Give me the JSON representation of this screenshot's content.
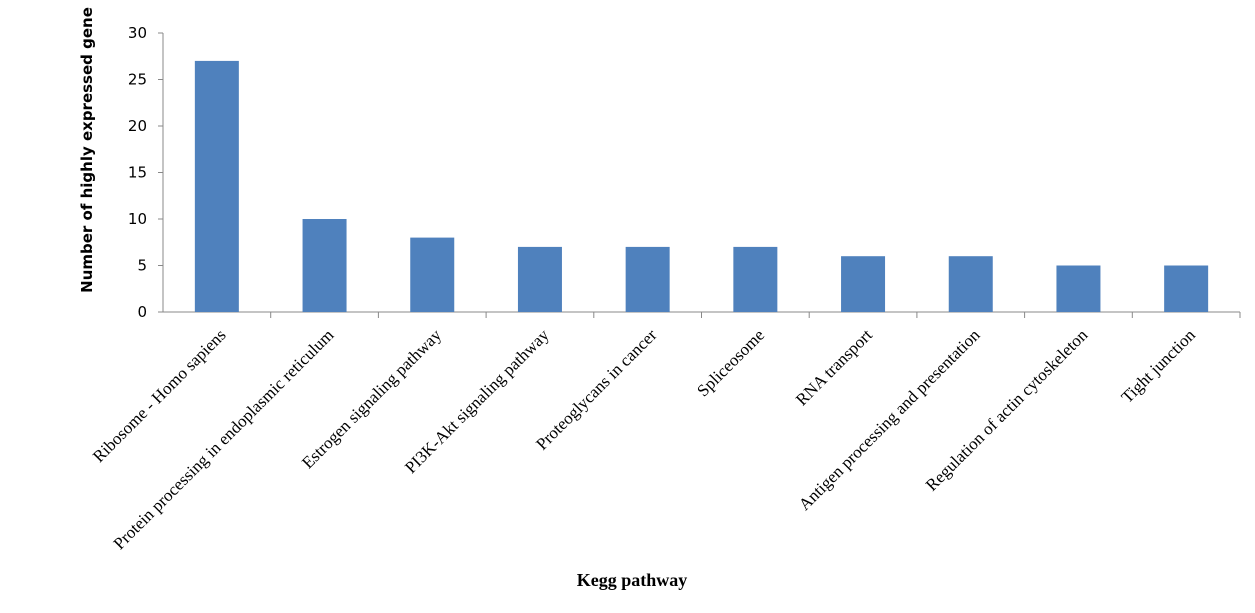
{
  "chart_data": {
    "type": "bar",
    "x_label": "Kegg pathway",
    "y_label": "Number of highly expressed gene",
    "categories": [
      "Ribosome - Homo sapiens",
      "Protein processing in endoplasmic reticulum",
      "Estrogen signaling pathway",
      "PI3K-Akt signaling pathway",
      "Proteoglycans in cancer",
      "Spliceosome",
      "RNA transport",
      "Antigen processing and presentation",
      "Regulation of actin cytoskeleton",
      "Tight junction"
    ],
    "values": [
      27,
      10,
      8,
      7,
      7,
      7,
      6,
      6,
      5,
      5
    ],
    "color": "#4f81bd",
    "ylim": [
      0,
      30
    ],
    "yticks": [
      0,
      5,
      10,
      15,
      20,
      25,
      30
    ],
    "grid": false
  }
}
